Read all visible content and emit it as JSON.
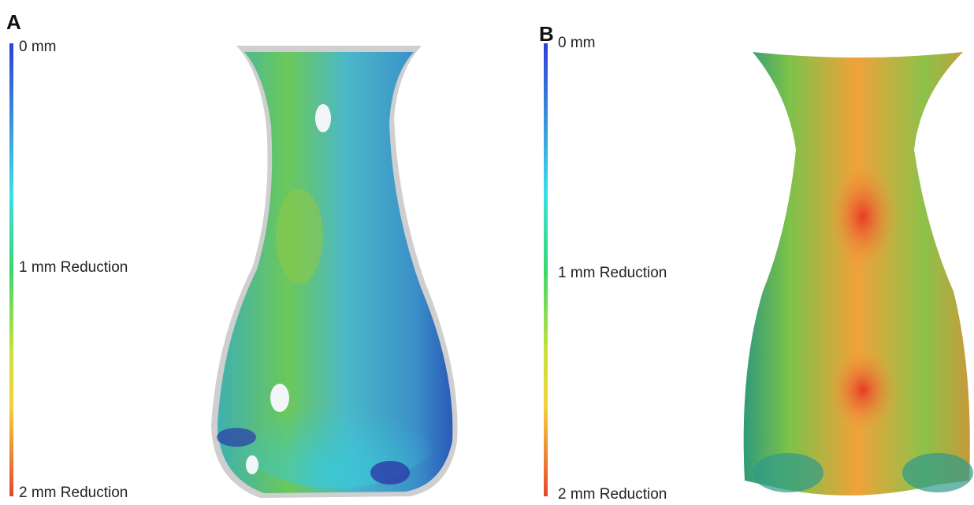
{
  "panels": [
    {
      "label": "A",
      "scale": {
        "top": "0 mm",
        "middle": "1 mm Reduction",
        "bottom": "2 mm Reduction"
      }
    },
    {
      "label": "B",
      "scale": {
        "top": "0 mm",
        "middle": "1 mm Reduction",
        "bottom": "2 mm Reduction"
      }
    }
  ]
}
